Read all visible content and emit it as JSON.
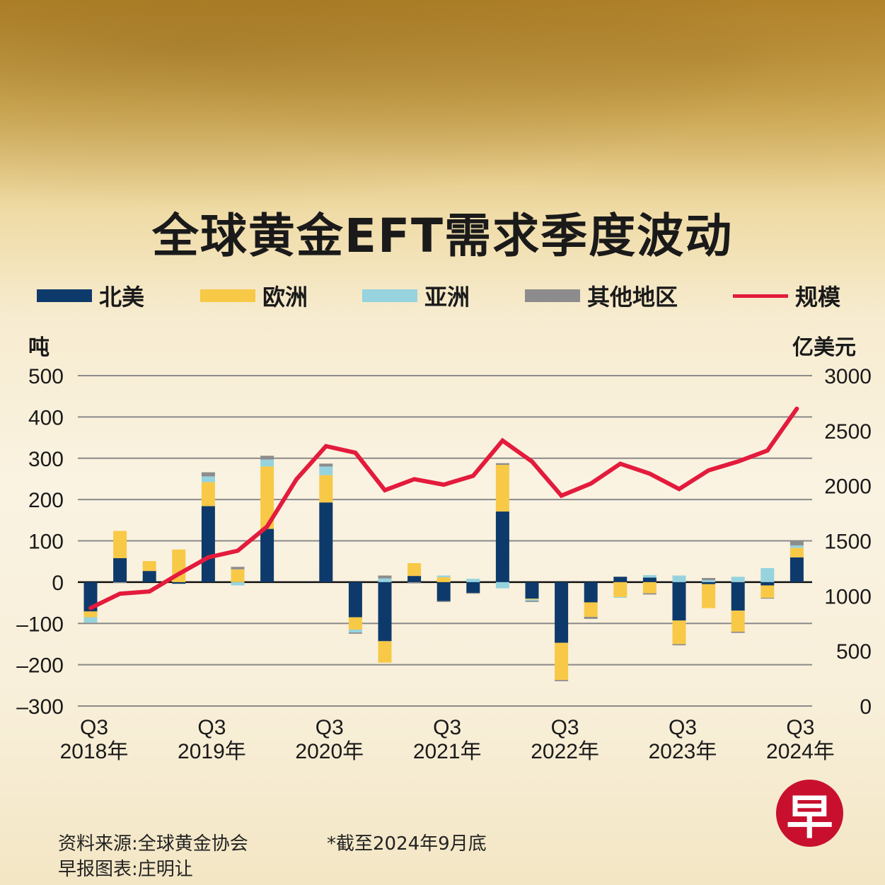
{
  "title": "全球黄金EFT需求季度波动",
  "legend": [
    {
      "label": "北美",
      "color": "#0e3a6b"
    },
    {
      "label": "欧洲",
      "color": "#f8c947"
    },
    {
      "label": "亚洲",
      "color": "#96d3df"
    },
    {
      "label": "其他地区",
      "color": "#8c8c8c"
    },
    {
      "label": "规模",
      "color": "#e31b3c"
    }
  ],
  "footer": {
    "source": "资料来源:全球黄金协会",
    "note": "*截至2024年9月底",
    "credit": "早报图表:庄明让"
  },
  "logo_text": "早",
  "chart_data": {
    "type": "bar",
    "stacked": true,
    "title": "全球黄金EFT需求季度波动",
    "ylabel": "吨",
    "y2label": "亿美元",
    "ylim": [
      -300,
      500
    ],
    "y2lim": [
      0,
      3000
    ],
    "yticks": [
      "500",
      "400",
      "300",
      "200",
      "100",
      "0",
      "–100",
      "–200",
      "–300"
    ],
    "y2ticks": [
      "3000",
      "2500",
      "2000",
      "1500",
      "1000",
      "500",
      "0"
    ],
    "grid": true,
    "legend_position": "top",
    "categories": [
      "Q3 2018",
      "Q4 2018",
      "Q1 2019",
      "Q2 2019",
      "Q3 2019",
      "Q4 2019",
      "Q1 2020",
      "Q2 2020",
      "Q3 2020",
      "Q4 2020",
      "Q1 2021",
      "Q2 2021",
      "Q3 2021",
      "Q4 2021",
      "Q1 2022",
      "Q2 2022",
      "Q3 2022",
      "Q4 2022",
      "Q1 2023",
      "Q2 2023",
      "Q3 2023",
      "Q4 2023",
      "Q1 2024",
      "Q2 2024",
      "Q3 2024"
    ],
    "xticklabels": [
      {
        "q": "Q3",
        "y": "2018年"
      },
      {
        "q": "Q3",
        "y": "2019年"
      },
      {
        "q": "Q3",
        "y": "2020年"
      },
      {
        "q": "Q3",
        "y": "2021年"
      },
      {
        "q": "Q3",
        "y": "2022年"
      },
      {
        "q": "Q3",
        "y": "2023年"
      },
      {
        "q": "Q3",
        "y": "2024年"
      }
    ],
    "series": [
      {
        "name": "北美",
        "values": [
          -71,
          58,
          27,
          -4,
          184,
          0,
          129,
          0,
          193,
          -85,
          -143,
          15,
          -46,
          -26,
          171,
          -40,
          -147,
          -49,
          13,
          11,
          -93,
          -5,
          -69,
          -8,
          60
        ]
      },
      {
        "name": "欧洲",
        "values": [
          -14,
          66,
          24,
          79,
          58,
          31,
          151,
          0,
          66,
          -30,
          -52,
          31,
          12,
          0,
          113,
          -2,
          -90,
          -35,
          -36,
          -27,
          -57,
          -58,
          -51,
          -30,
          23
        ]
      },
      {
        "name": "亚洲",
        "values": [
          -13,
          0,
          0,
          0,
          14,
          -8,
          17,
          0,
          21,
          -7,
          9,
          0,
          4,
          8,
          -15,
          -3,
          0,
          0,
          -2,
          6,
          16,
          5,
          13,
          34,
          6
        ]
      },
      {
        "name": "其他地区",
        "values": [
          0,
          -2,
          0,
          0,
          10,
          6,
          9,
          0,
          7,
          -3,
          7,
          -3,
          -2,
          -2,
          4,
          -3,
          -3,
          -5,
          0,
          -3,
          -3,
          5,
          -3,
          -2,
          10
        ]
      }
    ],
    "line": {
      "name": "规模",
      "axis": "right",
      "values": [
        890,
        1020,
        1040,
        1200,
        1350,
        1410,
        1630,
        2060,
        2360,
        2300,
        1960,
        2060,
        2010,
        2090,
        2410,
        2220,
        1910,
        2020,
        2200,
        2110,
        1970,
        2140,
        2220,
        2320,
        2700
      ]
    }
  }
}
